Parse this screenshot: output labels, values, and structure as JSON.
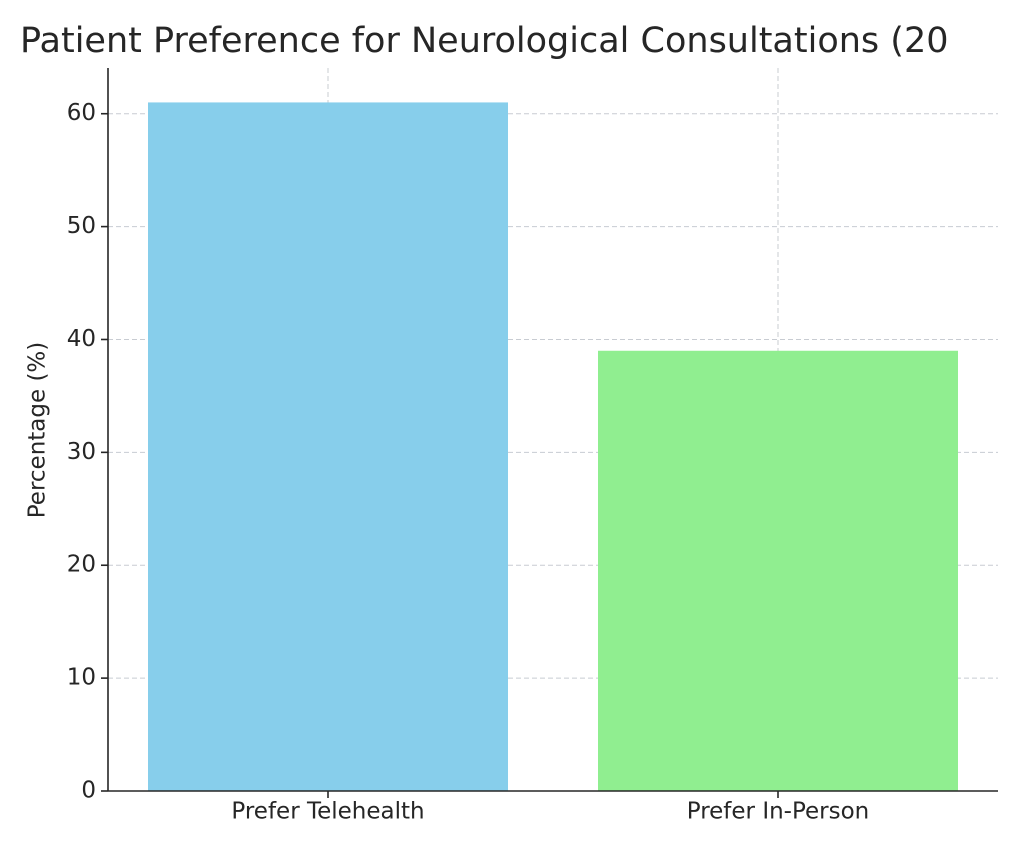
{
  "chart_data": {
    "type": "bar",
    "title": "Patient Preference for Neurological Consultations (20",
    "y_label": "Percentage (%)",
    "categories": [
      "Prefer Telehealth",
      "Prefer In-Person"
    ],
    "values": [
      61,
      39
    ],
    "colors": [
      "#87ceeb",
      "#90ee90"
    ],
    "ylim": [
      0,
      64.05
    ],
    "yticks": [
      0,
      10,
      20,
      30,
      40,
      50,
      60
    ],
    "grid": true
  }
}
